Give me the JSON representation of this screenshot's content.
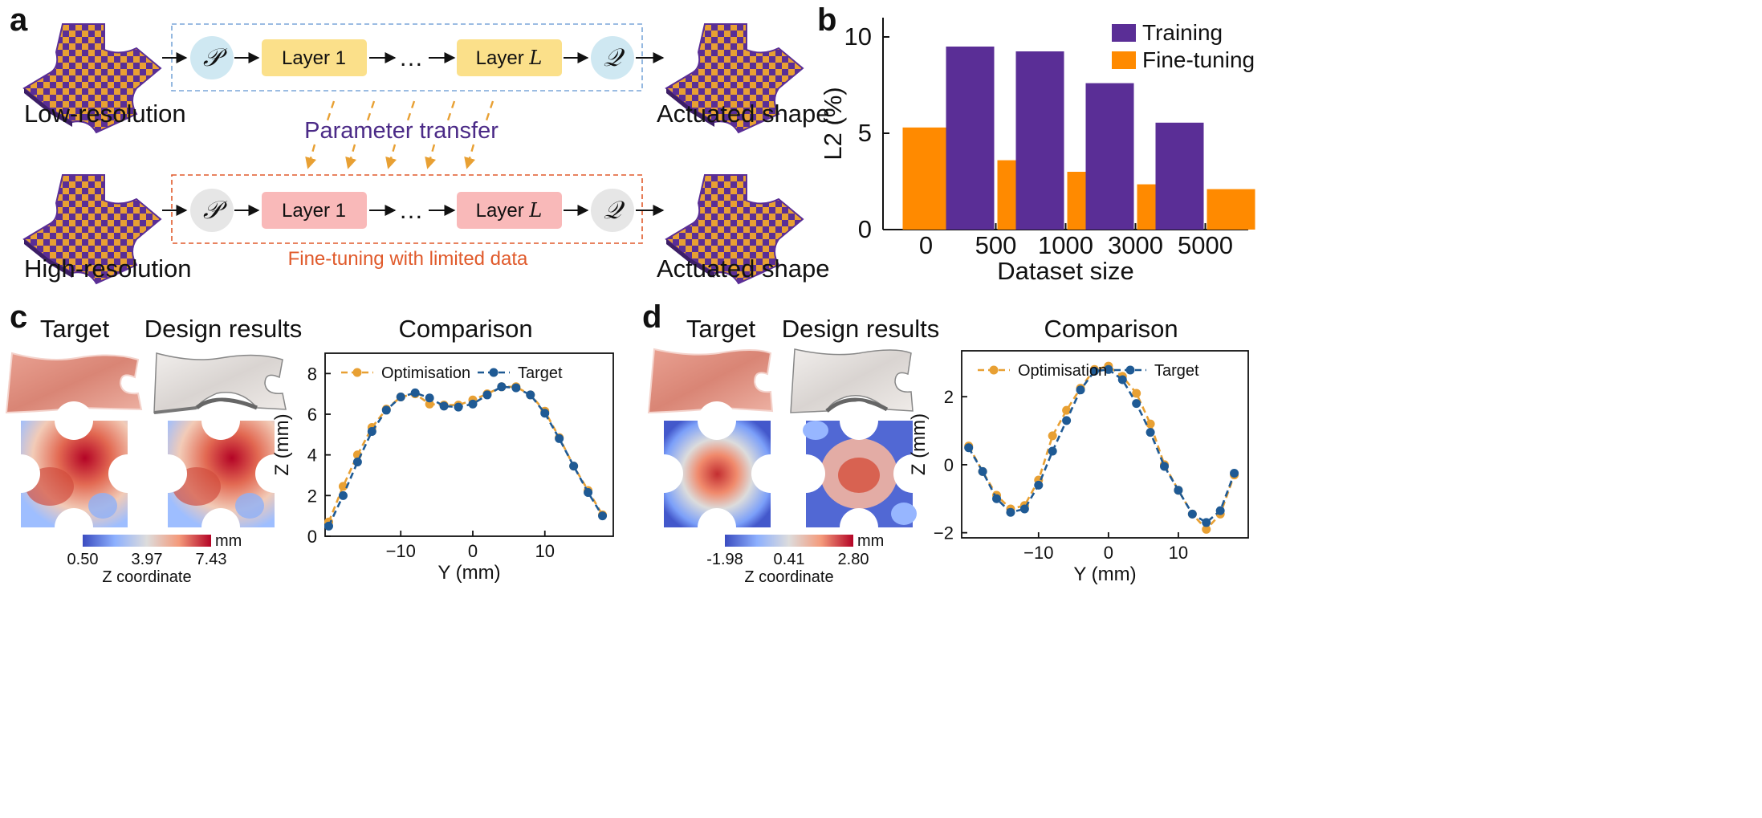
{
  "colors": {
    "purple": "#5a2e96",
    "orange": "#ff8a00",
    "gold": "#e8a033",
    "navy": "#1f5a94",
    "yellow_box": "#fbe08a",
    "pink_box": "#f9b9b9",
    "blue_circle": "#cfe8f2",
    "grey_circle": "#e6e6e6",
    "transfer_text": "#4b2a87",
    "finetune_text": "#e05a2b"
  },
  "panel_a": {
    "label": "a",
    "low_res_label": "Low-resolution",
    "high_res_label": "High-resolution",
    "actuated_top": "Actuated shape",
    "actuated_bottom": "Actuated shape",
    "p_symbol": "𝒫",
    "q_symbol": "𝒬",
    "layer1_top": "Layer 1",
    "layerL_top_prefix": "Layer ",
    "layerL_top_var": "L",
    "layer1_bottom": "Layer 1",
    "layerL_bottom_prefix": "Layer ",
    "layerL_bottom_var": "L",
    "ellipsis_top": "…",
    "ellipsis_bottom": "…",
    "transfer_label": "Parameter transfer",
    "finetune_label": "Fine-tuning with limited data"
  },
  "panel_b": {
    "label": "b",
    "chart_data": {
      "type": "bar",
      "title": "",
      "xlabel": "Dataset size",
      "ylabel": "L2 (%)",
      "categories": [
        "0",
        "500",
        "1000",
        "3000",
        "5000"
      ],
      "series": [
        {
          "name": "Training",
          "values": [
            null,
            9.5,
            9.25,
            7.6,
            5.55
          ]
        },
        {
          "name": "Fine-tuning",
          "values": [
            5.3,
            3.6,
            3.0,
            2.35,
            2.1
          ]
        }
      ],
      "ylim": [
        0,
        11
      ],
      "yticks": [
        0,
        5,
        10
      ],
      "legend": "top-right",
      "grid": false
    }
  },
  "panel_c": {
    "label": "c",
    "target_title": "Target",
    "design_title": "Design results",
    "comparison_title": "Comparison",
    "colorbar": {
      "unit": "mm",
      "min": "0.50",
      "mid": "3.97",
      "max": "7.43",
      "label": "Z coordinate"
    },
    "chart_data": {
      "type": "line",
      "title": "Comparison",
      "xlabel": "Y (mm)",
      "ylabel": "Z (mm)",
      "xlim": [
        -20.5,
        19.5
      ],
      "ylim": [
        0,
        9
      ],
      "xticks": [
        -10,
        0,
        10
      ],
      "yticks": [
        0,
        2,
        4,
        6,
        8
      ],
      "legend": "top",
      "series": [
        {
          "name": "Optimisation",
          "x": [
            -20,
            -18,
            -16,
            -14,
            -12,
            -10,
            -8,
            -6,
            -4,
            -2,
            0,
            2,
            4,
            6,
            8,
            10,
            12,
            14,
            16,
            18
          ],
          "y": [
            0.7,
            2.45,
            4.0,
            5.35,
            6.25,
            6.85,
            7.0,
            6.5,
            6.45,
            6.45,
            6.7,
            7.0,
            7.35,
            7.35,
            6.95,
            6.15,
            4.85,
            3.45,
            2.25,
            1.05
          ]
        },
        {
          "name": "Target",
          "x": [
            -20,
            -18,
            -16,
            -14,
            -12,
            -10,
            -8,
            -6,
            -4,
            -2,
            0,
            2,
            4,
            6,
            8,
            10,
            12,
            14,
            16,
            18
          ],
          "y": [
            0.5,
            2.0,
            3.65,
            5.15,
            6.2,
            6.85,
            7.05,
            6.8,
            6.4,
            6.35,
            6.5,
            6.95,
            7.35,
            7.3,
            6.95,
            6.05,
            4.8,
            3.45,
            2.15,
            1.0
          ]
        }
      ]
    }
  },
  "panel_d": {
    "label": "d",
    "target_title": "Target",
    "design_title": "Design results",
    "comparison_title": "Comparison",
    "colorbar": {
      "unit": "mm",
      "min": "-1.98",
      "mid": "0.41",
      "max": "2.80",
      "label": "Z coordinate"
    },
    "chart_data": {
      "type": "line",
      "title": "Comparison",
      "xlabel": "Y (mm)",
      "ylabel": "Z (mm)",
      "xlim": [
        -21,
        20
      ],
      "ylim": [
        -2.15,
        3.35
      ],
      "xticks": [
        -10,
        0,
        10
      ],
      "yticks": [
        -2,
        0,
        2
      ],
      "legend": "top",
      "series": [
        {
          "name": "Optimisation",
          "x": [
            -20,
            -18,
            -16,
            -14,
            -12,
            -10,
            -8,
            -6,
            -4,
            -2,
            0,
            2,
            4,
            6,
            8,
            10,
            12,
            14,
            16,
            18
          ],
          "y": [
            0.55,
            -0.2,
            -0.9,
            -1.3,
            -1.2,
            -0.45,
            0.85,
            1.6,
            2.25,
            2.8,
            2.9,
            2.6,
            2.1,
            1.2,
            0.0,
            -0.75,
            -1.45,
            -1.9,
            -1.45,
            -0.3
          ]
        },
        {
          "name": "Target",
          "x": [
            -20,
            -18,
            -16,
            -14,
            -12,
            -10,
            -8,
            -6,
            -4,
            -2,
            0,
            2,
            4,
            6,
            8,
            10,
            12,
            14,
            16,
            18
          ],
          "y": [
            0.5,
            -0.2,
            -1.0,
            -1.4,
            -1.3,
            -0.6,
            0.4,
            1.3,
            2.2,
            2.75,
            2.8,
            2.5,
            1.8,
            0.95,
            -0.05,
            -0.75,
            -1.45,
            -1.7,
            -1.35,
            -0.25
          ]
        }
      ]
    }
  }
}
